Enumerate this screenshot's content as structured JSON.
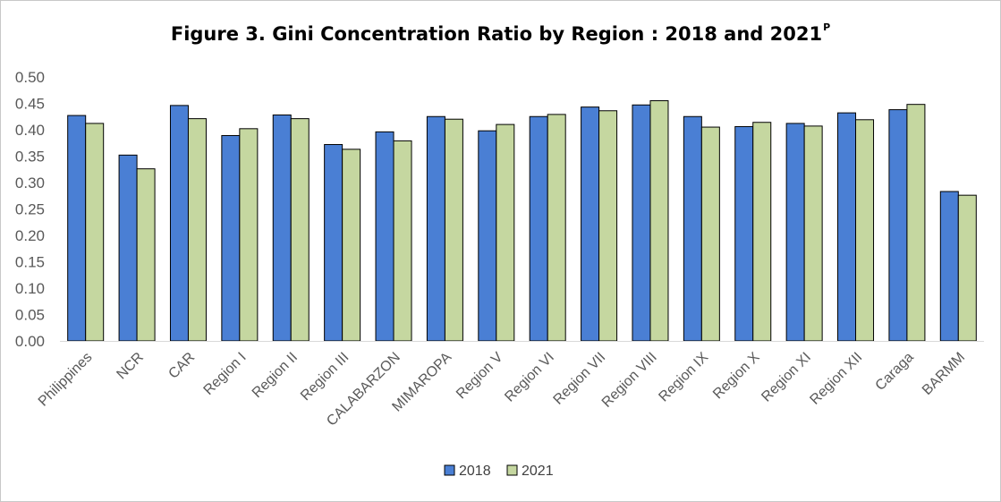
{
  "chart_data": {
    "type": "bar",
    "title": "Figure 3. Gini Concentration Ratio by Region : 2018 and 2021",
    "title_superscript": "P",
    "xlabel": "",
    "ylabel": "",
    "ylim": [
      0,
      0.5
    ],
    "yticks": [
      "0.00",
      "0.05",
      "0.10",
      "0.15",
      "0.20",
      "0.25",
      "0.30",
      "0.35",
      "0.40",
      "0.45",
      "0.50"
    ],
    "grid": false,
    "legend_position": "bottom",
    "categories": [
      "Philippines",
      "NCR",
      "CAR",
      "Region I",
      "Region II",
      "Region III",
      "CALABARZON",
      "MIMAROPA",
      "Region V",
      "Region VI",
      "Region VII",
      "Region VIII",
      "Region IX",
      "Region X",
      "Region XI",
      "Region XII",
      "Caraga",
      "BARMM"
    ],
    "series": [
      {
        "name": "2018",
        "color": "#4a7fd4",
        "values": [
          0.427,
          0.352,
          0.446,
          0.389,
          0.428,
          0.372,
          0.396,
          0.425,
          0.398,
          0.425,
          0.443,
          0.447,
          0.425,
          0.406,
          0.412,
          0.432,
          0.438,
          0.283
        ]
      },
      {
        "name": "2021",
        "color": "#c5d7a0",
        "values": [
          0.412,
          0.326,
          0.421,
          0.402,
          0.421,
          0.363,
          0.379,
          0.42,
          0.41,
          0.429,
          0.436,
          0.455,
          0.405,
          0.414,
          0.407,
          0.419,
          0.448,
          0.276
        ]
      }
    ]
  }
}
